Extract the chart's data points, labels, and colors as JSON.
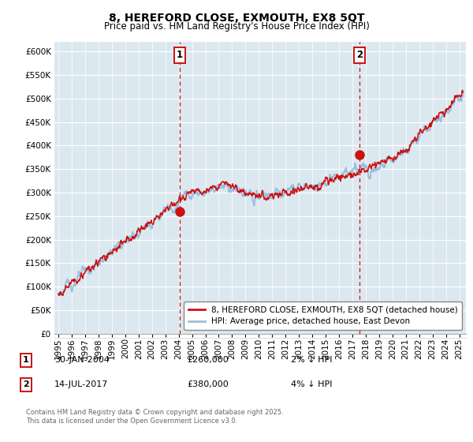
{
  "title": "8, HEREFORD CLOSE, EXMOUTH, EX8 5QT",
  "subtitle": "Price paid vs. HM Land Registry's House Price Index (HPI)",
  "ylim": [
    0,
    620000
  ],
  "yticks": [
    0,
    50000,
    100000,
    150000,
    200000,
    250000,
    300000,
    350000,
    400000,
    450000,
    500000,
    550000,
    600000
  ],
  "xlim_start": 1994.7,
  "xlim_end": 2025.5,
  "xticks": [
    1995,
    1996,
    1997,
    1998,
    1999,
    2000,
    2001,
    2002,
    2003,
    2004,
    2005,
    2006,
    2007,
    2008,
    2009,
    2010,
    2011,
    2012,
    2013,
    2014,
    2015,
    2016,
    2017,
    2018,
    2019,
    2020,
    2021,
    2022,
    2023,
    2024,
    2025
  ],
  "hpi_color": "#9bbfdb",
  "price_color": "#cc1111",
  "marker_color": "#cc1111",
  "vline_color": "#cc1111",
  "background_color": "#dce8f0",
  "grid_color": "#ffffff",
  "legend_label_price": "8, HEREFORD CLOSE, EXMOUTH, EX8 5QT (detached house)",
  "legend_label_hpi": "HPI: Average price, detached house, East Devon",
  "annotation1_date": "30-JAN-2004",
  "annotation1_price": "£260,000",
  "annotation1_pct": "2% ↓ HPI",
  "annotation2_date": "14-JUL-2017",
  "annotation2_price": "£380,000",
  "annotation2_pct": "4% ↓ HPI",
  "footnote": "Contains HM Land Registry data © Crown copyright and database right 2025.\nThis data is licensed under the Open Government Licence v3.0.",
  "sale1_x": 2004.08,
  "sale1_y": 260000,
  "sale2_x": 2017.54,
  "sale2_y": 380000,
  "title_fontsize": 10,
  "subtitle_fontsize": 8.5,
  "tick_fontsize": 7.5,
  "legend_fontsize": 7.5,
  "annot_fontsize": 8
}
